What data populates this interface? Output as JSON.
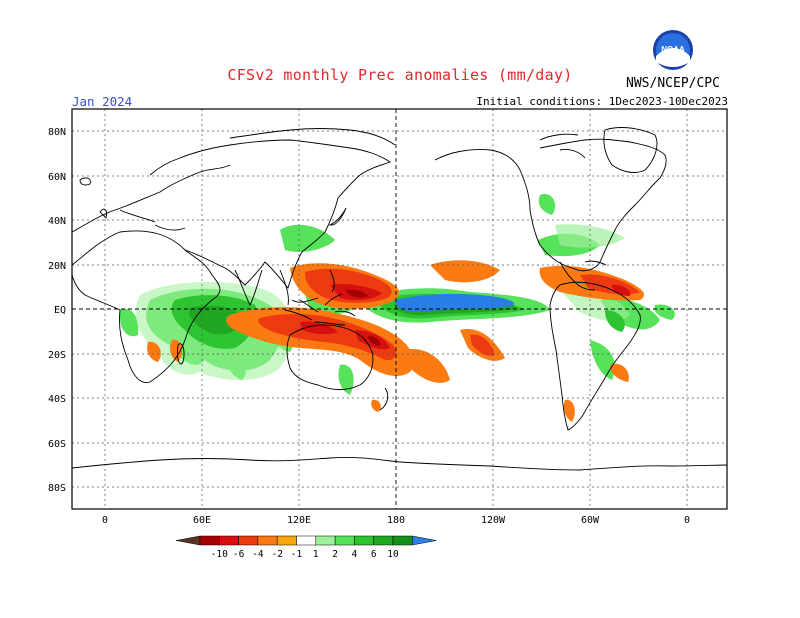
{
  "title": "CFSv2 monthly Prec anomalies (mm/day)",
  "valid_month": "Jan 2024",
  "initial_conditions": "Initial conditions: 1Dec2023-10Dec2023",
  "agency": "NWS/NCEP/CPC",
  "logo_text": "NOAA",
  "lat_labels": [
    "80N",
    "60N",
    "40N",
    "20N",
    "EQ",
    "20S",
    "40S",
    "60S",
    "80S"
  ],
  "lon_labels": [
    "0",
    "60E",
    "120E",
    "180",
    "120W",
    "60W",
    "0"
  ],
  "colorbar": {
    "tick_labels": [
      "-10",
      "-6",
      "-4",
      "-2",
      "-1",
      "1",
      "2",
      "4",
      "6",
      "10"
    ],
    "colors": [
      "#5a3226",
      "#a50000",
      "#d41010",
      "#ee3a10",
      "#fb7a12",
      "#f9a90e",
      "#ffffff",
      "#9ef09a",
      "#56e25a",
      "#2ec431",
      "#21a624",
      "#168f19",
      "#2a7fe6"
    ]
  },
  "chart_data": {
    "type": "heatmap",
    "title": "CFSv2 monthly Prec anomalies (mm/day)",
    "units": "mm/day",
    "x_axis": {
      "range": [
        "20W",
        "20E (380)"
      ],
      "ticks": [
        "0",
        "60E",
        "120E",
        "180",
        "120W",
        "60W",
        "0"
      ]
    },
    "y_axis": {
      "range": [
        "90S",
        "90N"
      ],
      "ticks": [
        "80N",
        "60N",
        "40N",
        "20N",
        "EQ",
        "20S",
        "40S",
        "60S",
        "80S"
      ]
    },
    "grid": true,
    "legend": "colorbar bottom",
    "levels": [
      -10,
      -6,
      -4,
      -2,
      -1,
      1,
      2,
      4,
      6,
      10
    ]
  }
}
